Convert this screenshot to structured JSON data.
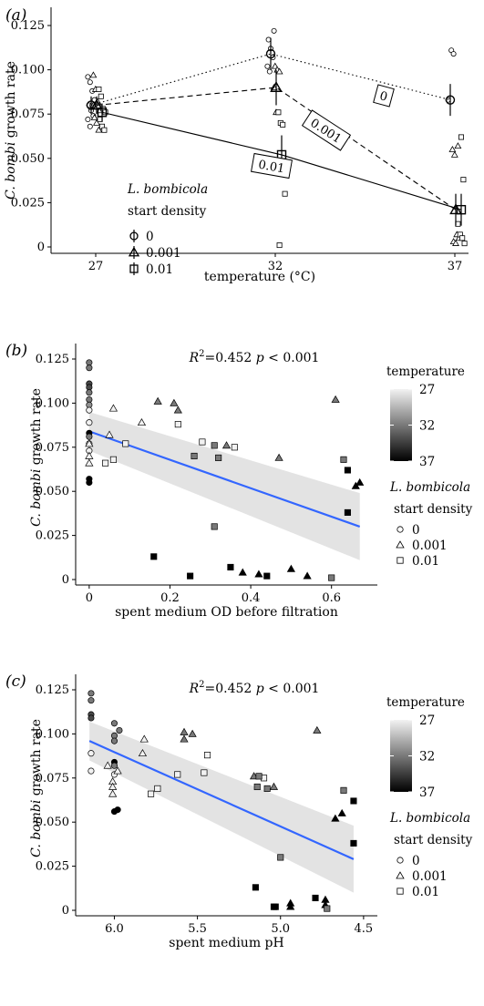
{
  "chart_data": [
    {
      "panel": "(a)",
      "type": "line",
      "xlabel": "temperature (°C)",
      "ylabel_italic": "C. bombi",
      "ylabel_rest": " growth rate",
      "x_ticks": [
        27,
        32,
        37
      ],
      "y_ticks": [
        "0",
        "0.025",
        "0.050",
        "0.075",
        "0.100",
        "0.125"
      ],
      "ylim": [
        0,
        0.125
      ],
      "legend_title_italic": "L. bombicola",
      "legend_subtitle": "start density",
      "legend_position": "left-inside",
      "series": [
        {
          "name": "0",
          "marker": "circle",
          "line": "dotted",
          "label": "0",
          "x": [
            27,
            32,
            37
          ],
          "y": [
            0.08,
            0.109,
            0.083
          ],
          "err": [
            0.005,
            0.009,
            0.009
          ]
        },
        {
          "name": "0.001",
          "marker": "triangle",
          "line": "dashed",
          "label": "0.001",
          "x": [
            27,
            32,
            37
          ],
          "y": [
            0.08,
            0.09,
            0.021
          ],
          "err": [
            0.005,
            0.01,
            0.009
          ]
        },
        {
          "name": "0.01",
          "marker": "square",
          "line": "solid",
          "label": "0.01",
          "x": [
            27,
            32,
            37
          ],
          "y": [
            0.076,
            0.052,
            0.021
          ],
          "err": [
            0.005,
            0.011,
            0.009
          ]
        }
      ],
      "raw_points": {
        "0": [
          [
            27,
            0.096
          ],
          [
            27,
            0.093
          ],
          [
            27,
            0.088
          ],
          [
            27,
            0.083
          ],
          [
            27,
            0.08
          ],
          [
            27,
            0.077
          ],
          [
            27,
            0.074
          ],
          [
            27,
            0.072
          ],
          [
            27,
            0.068
          ],
          [
            27,
            0.08
          ],
          [
            32,
            0.122
          ],
          [
            32,
            0.117
          ],
          [
            32,
            0.112
          ],
          [
            32,
            0.107
          ],
          [
            32,
            0.102
          ],
          [
            32,
            0.099
          ],
          [
            37,
            0.111
          ],
          [
            37,
            0.109
          ],
          [
            37,
            0.083
          ]
        ],
        "0.001": [
          [
            27,
            0.097
          ],
          [
            27,
            0.089
          ],
          [
            27,
            0.082
          ],
          [
            27,
            0.077
          ],
          [
            27,
            0.073
          ],
          [
            27,
            0.07
          ],
          [
            27,
            0.066
          ],
          [
            27,
            0.08
          ],
          [
            32,
            0.102
          ],
          [
            32,
            0.1
          ],
          [
            32,
            0.099
          ],
          [
            32,
            0.09
          ],
          [
            32,
            0.076
          ],
          [
            37,
            0.057
          ],
          [
            37,
            0.055
          ],
          [
            37,
            0.052
          ],
          [
            37,
            0.007
          ],
          [
            37,
            0.005
          ],
          [
            37,
            0.003
          ],
          [
            37,
            0.002
          ]
        ],
        "0.01": [
          [
            27,
            0.089
          ],
          [
            27,
            0.085
          ],
          [
            27,
            0.078
          ],
          [
            27,
            0.076
          ],
          [
            27,
            0.072
          ],
          [
            27,
            0.068
          ],
          [
            27,
            0.066
          ],
          [
            32,
            0.076
          ],
          [
            32,
            0.07
          ],
          [
            32,
            0.069
          ],
          [
            32,
            0.03
          ],
          [
            32,
            0.001
          ],
          [
            37,
            0.062
          ],
          [
            37,
            0.038
          ],
          [
            37,
            0.013
          ],
          [
            37,
            0.007
          ],
          [
            37,
            0.005
          ],
          [
            37,
            0.002
          ]
        ]
      }
    },
    {
      "panel": "(b)",
      "type": "scatter",
      "xlabel": "spent medium OD before filtration",
      "ylabel_italic": "C. bombi",
      "ylabel_rest": " growth rate",
      "x_ticks": [
        "0",
        "0.2",
        "0.4",
        "0.6"
      ],
      "xlim": [
        -0.02,
        0.7
      ],
      "y_ticks": [
        "0",
        "0.025",
        "0.050",
        "0.075",
        "0.100",
        "0.125"
      ],
      "ylim": [
        0,
        0.125
      ],
      "stat_R": "R",
      "stat_value": "=0.452",
      "stat_p": "p",
      "stat_p_value": "< 0.001",
      "fit": {
        "x": [
          0,
          0.67
        ],
        "y": [
          0.084,
          0.03
        ],
        "band_halfwidth": [
          0.011,
          0.019
        ],
        "color": "#3366ff"
      },
      "points": [
        {
          "x": 0.0,
          "y": 0.123,
          "temp": 32,
          "shape": "circle"
        },
        {
          "x": 0.0,
          "y": 0.12,
          "temp": 32,
          "shape": "circle"
        },
        {
          "x": 0.0,
          "y": 0.111,
          "temp": 34,
          "shape": "circle"
        },
        {
          "x": 0.0,
          "y": 0.109,
          "temp": 34,
          "shape": "circle"
        },
        {
          "x": 0.0,
          "y": 0.106,
          "temp": 32,
          "shape": "circle"
        },
        {
          "x": 0.0,
          "y": 0.102,
          "temp": 32,
          "shape": "circle"
        },
        {
          "x": 0.0,
          "y": 0.099,
          "temp": 31,
          "shape": "circle"
        },
        {
          "x": 0.0,
          "y": 0.096,
          "temp": 27,
          "shape": "circle"
        },
        {
          "x": 0.0,
          "y": 0.089,
          "temp": 27,
          "shape": "circle"
        },
        {
          "x": 0.0,
          "y": 0.083,
          "temp": 37,
          "shape": "circle"
        },
        {
          "x": 0.0,
          "y": 0.081,
          "temp": 32,
          "shape": "circle"
        },
        {
          "x": 0.0,
          "y": 0.077,
          "temp": 27,
          "shape": "circle"
        },
        {
          "x": 0.0,
          "y": 0.073,
          "temp": 27,
          "shape": "circle"
        },
        {
          "x": 0.0,
          "y": 0.057,
          "temp": 37,
          "shape": "circle"
        },
        {
          "x": 0.0,
          "y": 0.055,
          "temp": 37,
          "shape": "circle"
        },
        {
          "x": 0.0,
          "y": 0.077,
          "temp": 27,
          "shape": "triangle"
        },
        {
          "x": 0.0,
          "y": 0.07,
          "temp": 27,
          "shape": "triangle"
        },
        {
          "x": 0.0,
          "y": 0.066,
          "temp": 27,
          "shape": "triangle"
        },
        {
          "x": 0.05,
          "y": 0.082,
          "temp": 27,
          "shape": "triangle"
        },
        {
          "x": 0.06,
          "y": 0.097,
          "temp": 27,
          "shape": "triangle"
        },
        {
          "x": 0.13,
          "y": 0.089,
          "temp": 27,
          "shape": "triangle"
        },
        {
          "x": 0.17,
          "y": 0.101,
          "temp": 32,
          "shape": "triangle"
        },
        {
          "x": 0.21,
          "y": 0.1,
          "temp": 32,
          "shape": "triangle"
        },
        {
          "x": 0.22,
          "y": 0.096,
          "temp": 32,
          "shape": "triangle"
        },
        {
          "x": 0.34,
          "y": 0.076,
          "temp": 32,
          "shape": "triangle"
        },
        {
          "x": 0.47,
          "y": 0.069,
          "temp": 32,
          "shape": "triangle"
        },
        {
          "x": 0.61,
          "y": 0.102,
          "temp": 32,
          "shape": "triangle"
        },
        {
          "x": 0.38,
          "y": 0.004,
          "temp": 37,
          "shape": "triangle"
        },
        {
          "x": 0.42,
          "y": 0.003,
          "temp": 37,
          "shape": "triangle"
        },
        {
          "x": 0.5,
          "y": 0.006,
          "temp": 37,
          "shape": "triangle"
        },
        {
          "x": 0.54,
          "y": 0.002,
          "temp": 37,
          "shape": "triangle"
        },
        {
          "x": 0.66,
          "y": 0.053,
          "temp": 37,
          "shape": "triangle"
        },
        {
          "x": 0.67,
          "y": 0.055,
          "temp": 37,
          "shape": "triangle"
        },
        {
          "x": 0.04,
          "y": 0.066,
          "temp": 27,
          "shape": "square"
        },
        {
          "x": 0.06,
          "y": 0.068,
          "temp": 27,
          "shape": "square"
        },
        {
          "x": 0.09,
          "y": 0.077,
          "temp": 27,
          "shape": "square"
        },
        {
          "x": 0.22,
          "y": 0.088,
          "temp": 27,
          "shape": "square"
        },
        {
          "x": 0.28,
          "y": 0.078,
          "temp": 27,
          "shape": "square"
        },
        {
          "x": 0.36,
          "y": 0.075,
          "temp": 27,
          "shape": "square"
        },
        {
          "x": 0.26,
          "y": 0.07,
          "temp": 32,
          "shape": "square"
        },
        {
          "x": 0.31,
          "y": 0.076,
          "temp": 32,
          "shape": "square"
        },
        {
          "x": 0.32,
          "y": 0.069,
          "temp": 32,
          "shape": "square"
        },
        {
          "x": 0.31,
          "y": 0.03,
          "temp": 32,
          "shape": "square"
        },
        {
          "x": 0.6,
          "y": 0.001,
          "temp": 32,
          "shape": "square"
        },
        {
          "x": 0.63,
          "y": 0.068,
          "temp": 32,
          "shape": "square"
        },
        {
          "x": 0.16,
          "y": 0.013,
          "temp": 37,
          "shape": "square"
        },
        {
          "x": 0.25,
          "y": 0.002,
          "temp": 37,
          "shape": "square"
        },
        {
          "x": 0.35,
          "y": 0.007,
          "temp": 37,
          "shape": "square"
        },
        {
          "x": 0.44,
          "y": 0.002,
          "temp": 37,
          "shape": "square"
        },
        {
          "x": 0.64,
          "y": 0.038,
          "temp": 37,
          "shape": "square"
        },
        {
          "x": 0.64,
          "y": 0.062,
          "temp": 37,
          "shape": "square"
        }
      ]
    },
    {
      "panel": "(c)",
      "type": "scatter",
      "xlabel": "spent medium pH",
      "ylabel_italic": "C. bombi",
      "ylabel_rest": " growth rate",
      "x_ticks": [
        "6.0",
        "5.5",
        "5.0",
        "4.5"
      ],
      "x_reversed": true,
      "xlim": [
        6.2,
        4.45
      ],
      "y_ticks": [
        "0",
        "0.025",
        "0.050",
        "0.075",
        "0.100",
        "0.125"
      ],
      "ylim": [
        0,
        0.125
      ],
      "stat_R": "R",
      "stat_value": "=0.452",
      "stat_p": "p",
      "stat_p_value": "< 0.001",
      "fit": {
        "x": [
          6.15,
          4.56
        ],
        "y": [
          0.096,
          0.029
        ],
        "band_halfwidth": [
          0.011,
          0.019
        ],
        "color": "#3366ff"
      },
      "points": [
        {
          "x": 6.14,
          "y": 0.123,
          "temp": 32,
          "shape": "circle"
        },
        {
          "x": 6.14,
          "y": 0.119,
          "temp": 32,
          "shape": "circle"
        },
        {
          "x": 6.14,
          "y": 0.111,
          "temp": 34,
          "shape": "circle"
        },
        {
          "x": 6.14,
          "y": 0.109,
          "temp": 34,
          "shape": "circle"
        },
        {
          "x": 6.14,
          "y": 0.089,
          "temp": 27,
          "shape": "circle"
        },
        {
          "x": 6.14,
          "y": 0.079,
          "temp": 27,
          "shape": "circle"
        },
        {
          "x": 6.0,
          "y": 0.106,
          "temp": 32,
          "shape": "circle"
        },
        {
          "x": 5.97,
          "y": 0.102,
          "temp": 32,
          "shape": "circle"
        },
        {
          "x": 6.0,
          "y": 0.099,
          "temp": 32,
          "shape": "circle"
        },
        {
          "x": 6.0,
          "y": 0.096,
          "temp": 32,
          "shape": "circle"
        },
        {
          "x": 6.0,
          "y": 0.084,
          "temp": 37,
          "shape": "circle"
        },
        {
          "x": 6.0,
          "y": 0.082,
          "temp": 32,
          "shape": "circle"
        },
        {
          "x": 6.0,
          "y": 0.077,
          "temp": 27,
          "shape": "circle"
        },
        {
          "x": 6.0,
          "y": 0.056,
          "temp": 37,
          "shape": "circle"
        },
        {
          "x": 5.98,
          "y": 0.057,
          "temp": 37,
          "shape": "circle"
        },
        {
          "x": 6.04,
          "y": 0.082,
          "temp": 27,
          "shape": "triangle"
        },
        {
          "x": 6.01,
          "y": 0.073,
          "temp": 27,
          "shape": "triangle"
        },
        {
          "x": 6.01,
          "y": 0.07,
          "temp": 27,
          "shape": "triangle"
        },
        {
          "x": 6.01,
          "y": 0.066,
          "temp": 27,
          "shape": "triangle"
        },
        {
          "x": 5.98,
          "y": 0.079,
          "temp": 27,
          "shape": "triangle"
        },
        {
          "x": 5.82,
          "y": 0.097,
          "temp": 27,
          "shape": "triangle"
        },
        {
          "x": 5.83,
          "y": 0.089,
          "temp": 27,
          "shape": "triangle"
        },
        {
          "x": 5.58,
          "y": 0.101,
          "temp": 32,
          "shape": "triangle"
        },
        {
          "x": 5.58,
          "y": 0.097,
          "temp": 32,
          "shape": "triangle"
        },
        {
          "x": 5.53,
          "y": 0.1,
          "temp": 32,
          "shape": "triangle"
        },
        {
          "x": 5.16,
          "y": 0.076,
          "temp": 32,
          "shape": "triangle"
        },
        {
          "x": 5.04,
          "y": 0.07,
          "temp": 32,
          "shape": "triangle"
        },
        {
          "x": 4.78,
          "y": 0.102,
          "temp": 32,
          "shape": "triangle"
        },
        {
          "x": 4.94,
          "y": 0.004,
          "temp": 37,
          "shape": "triangle"
        },
        {
          "x": 4.94,
          "y": 0.002,
          "temp": 37,
          "shape": "triangle"
        },
        {
          "x": 4.73,
          "y": 0.006,
          "temp": 37,
          "shape": "triangle"
        },
        {
          "x": 4.73,
          "y": 0.003,
          "temp": 37,
          "shape": "triangle"
        },
        {
          "x": 4.67,
          "y": 0.052,
          "temp": 37,
          "shape": "triangle"
        },
        {
          "x": 4.63,
          "y": 0.055,
          "temp": 37,
          "shape": "triangle"
        },
        {
          "x": 5.78,
          "y": 0.066,
          "temp": 27,
          "shape": "square"
        },
        {
          "x": 5.74,
          "y": 0.069,
          "temp": 27,
          "shape": "square"
        },
        {
          "x": 5.62,
          "y": 0.077,
          "temp": 27,
          "shape": "square"
        },
        {
          "x": 5.44,
          "y": 0.088,
          "temp": 27,
          "shape": "square"
        },
        {
          "x": 5.46,
          "y": 0.078,
          "temp": 27,
          "shape": "square"
        },
        {
          "x": 5.1,
          "y": 0.075,
          "temp": 27,
          "shape": "square"
        },
        {
          "x": 5.13,
          "y": 0.076,
          "temp": 32,
          "shape": "square"
        },
        {
          "x": 5.14,
          "y": 0.07,
          "temp": 32,
          "shape": "square"
        },
        {
          "x": 5.08,
          "y": 0.069,
          "temp": 32,
          "shape": "square"
        },
        {
          "x": 5.0,
          "y": 0.03,
          "temp": 32,
          "shape": "square"
        },
        {
          "x": 4.72,
          "y": 0.001,
          "temp": 32,
          "shape": "square"
        },
        {
          "x": 4.62,
          "y": 0.068,
          "temp": 32,
          "shape": "square"
        },
        {
          "x": 5.15,
          "y": 0.013,
          "temp": 37,
          "shape": "square"
        },
        {
          "x": 5.04,
          "y": 0.002,
          "temp": 37,
          "shape": "square"
        },
        {
          "x": 4.79,
          "y": 0.007,
          "temp": 37,
          "shape": "square"
        },
        {
          "x": 5.03,
          "y": 0.002,
          "temp": 37,
          "shape": "square"
        },
        {
          "x": 4.56,
          "y": 0.038,
          "temp": 37,
          "shape": "square"
        },
        {
          "x": 4.56,
          "y": 0.062,
          "temp": 37,
          "shape": "square"
        }
      ]
    }
  ],
  "side_legend": {
    "temperature_title": "temperature",
    "temperature_ticks": [
      "27",
      "32",
      "37"
    ],
    "temperature_range": [
      27,
      37
    ],
    "color_low": "#f2f2f2",
    "color_high": "#000000",
    "shape_title_italic": "L. bombicola",
    "shape_subtitle": "start density",
    "shape_labels": [
      "0",
      "0.001",
      "0.01"
    ]
  }
}
